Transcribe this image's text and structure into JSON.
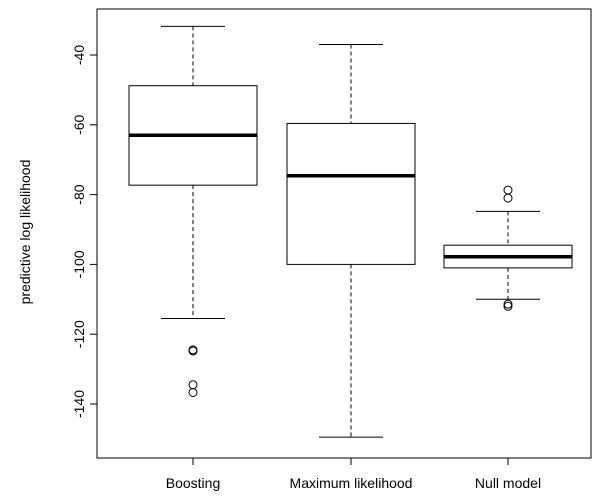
{
  "chart_data": {
    "type": "boxplot",
    "title": "",
    "xlabel": "",
    "ylabel": "predictive log likelihood",
    "ylim": [
      -155,
      -27
    ],
    "yticks": [
      -40,
      -60,
      -80,
      -100,
      -120,
      -140
    ],
    "grid": false,
    "legend": "none",
    "categories": [
      "Boosting",
      "Maximum likelihood",
      "Null model"
    ],
    "boxes": [
      {
        "name": "Boosting",
        "whisker_low": -115.5,
        "q1": -77.3,
        "median": -63,
        "q3": -48.8,
        "whisker_high": -31.8,
        "outliers": [
          -124.5,
          -124.8,
          -134.5,
          -136.7
        ]
      },
      {
        "name": "Maximum likelihood",
        "whisker_low": -149.5,
        "q1": -100.0,
        "median": -74.6,
        "q3": -59.6,
        "whisker_high": -37.0,
        "outliers": []
      },
      {
        "name": "Null model",
        "whisker_low": -110.0,
        "q1": -101.0,
        "median": -97.8,
        "q3": -94.5,
        "whisker_high": -84.8,
        "outliers": [
          -78.7,
          -81.0,
          -111.4,
          -112.0
        ]
      }
    ]
  }
}
